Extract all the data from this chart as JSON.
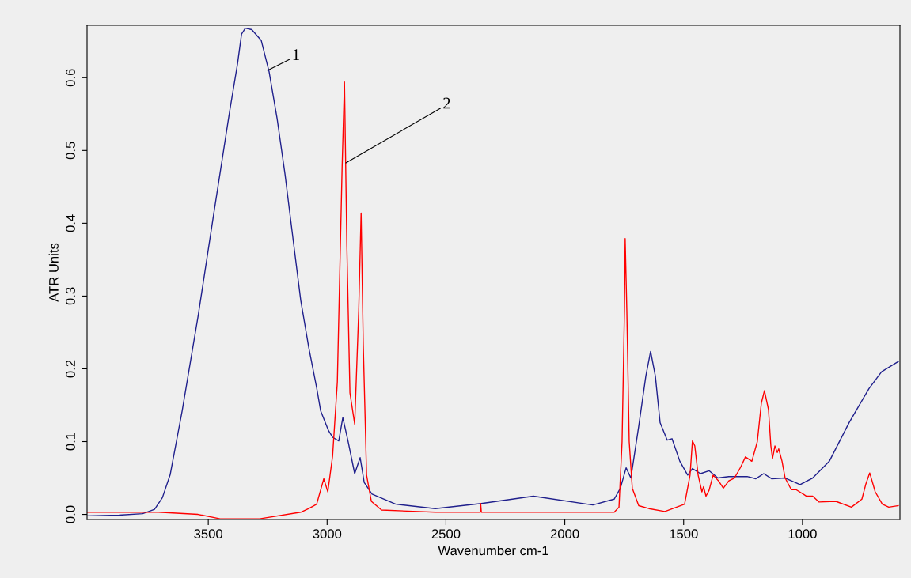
{
  "chart_data": {
    "type": "line",
    "xlabel": "Wavenumber cm-1",
    "ylabel": "ATR Units",
    "xlim": [
      4010,
      590
    ],
    "ylim": [
      -0.007,
      0.672
    ],
    "xticks": [
      3500,
      3000,
      2500,
      2000,
      1500,
      1000
    ],
    "yticks": [
      {
        "value": 0,
        "label": "0.0"
      },
      {
        "value": 0.1,
        "label": "0.1"
      },
      {
        "value": 0.2,
        "label": "0.2"
      },
      {
        "value": 0.3,
        "label": "0.3"
      },
      {
        "value": 0.4,
        "label": "0.4"
      },
      {
        "value": 0.5,
        "label": "0.5"
      },
      {
        "value": 0.6,
        "label": "0.6"
      }
    ],
    "annotations": [
      {
        "text": "1",
        "x": 3250,
        "y": 0.61
      },
      {
        "text": "2",
        "x": 2921,
        "y": 0.483
      }
    ],
    "series": [
      {
        "color": "#1f1f8c",
        "x": [
          4009,
          3876,
          3776,
          3726,
          3693,
          3660,
          3610,
          3543,
          3477,
          3410,
          3377,
          3360,
          3344,
          3317,
          3277,
          3244,
          3210,
          3177,
          3144,
          3111,
          3077,
          3044,
          3027,
          2994,
          2977,
          2951,
          2934,
          2911,
          2884,
          2861,
          2844,
          2811,
          2711,
          2545,
          2351,
          2132,
          1882,
          1792,
          1766,
          1742,
          1722,
          1689,
          1659,
          1639,
          1619,
          1599,
          1569,
          1549,
          1516,
          1483,
          1463,
          1429,
          1393,
          1356,
          1310,
          1233,
          1196,
          1163,
          1130,
          1073,
          1010,
          957,
          887,
          804,
          720,
          667,
          597
        ],
        "values": [
          -0.002,
          -0.001,
          0.001,
          0.007,
          0.023,
          0.055,
          0.142,
          0.272,
          0.413,
          0.554,
          0.619,
          0.66,
          0.668,
          0.666,
          0.651,
          0.608,
          0.543,
          0.467,
          0.38,
          0.294,
          0.229,
          0.174,
          0.142,
          0.115,
          0.106,
          0.101,
          0.133,
          0.099,
          0.056,
          0.078,
          0.044,
          0.028,
          0.014,
          0.008,
          0.015,
          0.025,
          0.013,
          0.021,
          0.036,
          0.064,
          0.05,
          0.121,
          0.19,
          0.224,
          0.19,
          0.126,
          0.102,
          0.104,
          0.073,
          0.054,
          0.063,
          0.056,
          0.06,
          0.05,
          0.052,
          0.052,
          0.049,
          0.056,
          0.049,
          0.05,
          0.041,
          0.05,
          0.073,
          0.126,
          0.173,
          0.196,
          0.21
        ]
      },
      {
        "color": "#ff0000",
        "x": [
          4009,
          3710,
          3543,
          3450,
          3284,
          3111,
          3077,
          3044,
          3014,
          2997,
          2977,
          2957,
          2937,
          2927,
          2917,
          2904,
          2884,
          2867,
          2857,
          2848,
          2834,
          2814,
          2771,
          2545,
          2356,
          2354,
          2351,
          1792,
          1772,
          1759,
          1749,
          1746,
          1739,
          1729,
          1716,
          1689,
          1646,
          1579,
          1496,
          1473,
          1463,
          1453,
          1439,
          1423,
          1416,
          1406,
          1393,
          1376,
          1353,
          1333,
          1310,
          1286,
          1260,
          1240,
          1213,
          1190,
          1173,
          1160,
          1143,
          1133,
          1126,
          1116,
          1106,
          1100,
          1086,
          1073,
          1047,
          1027,
          983,
          957,
          930,
          860,
          794,
          750,
          734,
          717,
          694,
          664,
          637,
          597
        ],
        "values": [
          0.003,
          0.003,
          0.0,
          -0.006,
          -0.006,
          0.003,
          0.008,
          0.014,
          0.049,
          0.031,
          0.08,
          0.182,
          0.476,
          0.594,
          0.369,
          0.167,
          0.124,
          0.28,
          0.414,
          0.234,
          0.054,
          0.018,
          0.006,
          0.003,
          0.003,
          0.015,
          0.003,
          0.003,
          0.01,
          0.1,
          0.28,
          0.379,
          0.28,
          0.1,
          0.036,
          0.012,
          0.008,
          0.004,
          0.014,
          0.054,
          0.101,
          0.094,
          0.054,
          0.031,
          0.038,
          0.025,
          0.033,
          0.054,
          0.046,
          0.036,
          0.046,
          0.05,
          0.065,
          0.079,
          0.073,
          0.1,
          0.153,
          0.17,
          0.144,
          0.094,
          0.077,
          0.094,
          0.085,
          0.09,
          0.073,
          0.05,
          0.034,
          0.034,
          0.025,
          0.025,
          0.017,
          0.018,
          0.01,
          0.021,
          0.041,
          0.057,
          0.031,
          0.014,
          0.01,
          0.012
        ]
      }
    ]
  }
}
